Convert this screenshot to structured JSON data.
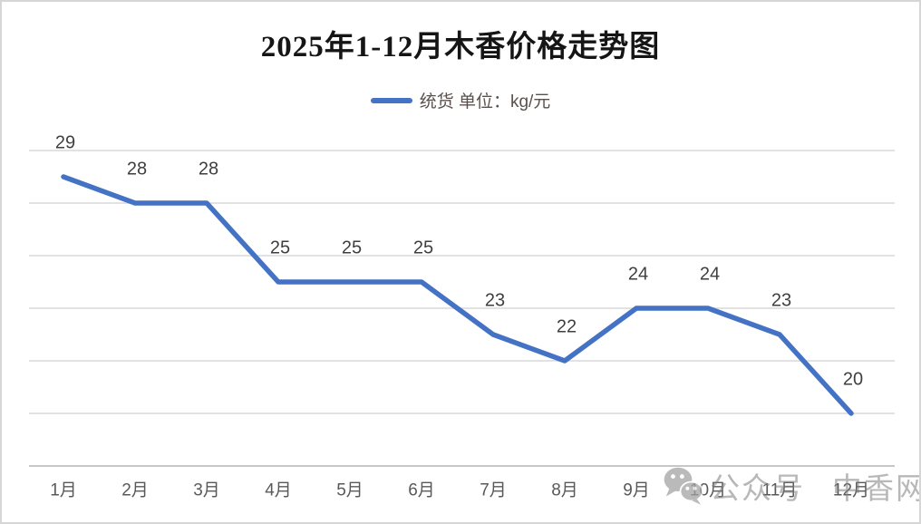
{
  "chart_data": {
    "type": "line",
    "title": "2025年1-12月木香价格走势图",
    "legend": {
      "label": "统货 单位：kg/元",
      "position": "top-center"
    },
    "categories": [
      "1月",
      "2月",
      "3月",
      "4月",
      "5月",
      "6月",
      "7月",
      "8月",
      "9月",
      "10月",
      "11月",
      "12月"
    ],
    "series": [
      {
        "name": "统货",
        "values": [
          29,
          28,
          28,
          25,
          25,
          25,
          23,
          22,
          24,
          24,
          23,
          20
        ],
        "color": "#4472C4"
      }
    ],
    "xlabel": "",
    "ylabel": "",
    "ylim": [
      18,
      30
    ],
    "grid_step": 2,
    "grid": true,
    "y_tick_labels_visible": false,
    "data_labels_visible": true
  },
  "watermark": {
    "icon": "wechat-icon",
    "text_left": "公众号",
    "text_right": "中香网",
    "color": "#b5b5b5"
  },
  "ui_colors": {
    "line": "#4472C4",
    "gridline": "#e2e2e2",
    "axis_line": "#c7c7c7",
    "data_label": "#3f3f3f",
    "axis_label": "#595959",
    "title": "#151515"
  }
}
